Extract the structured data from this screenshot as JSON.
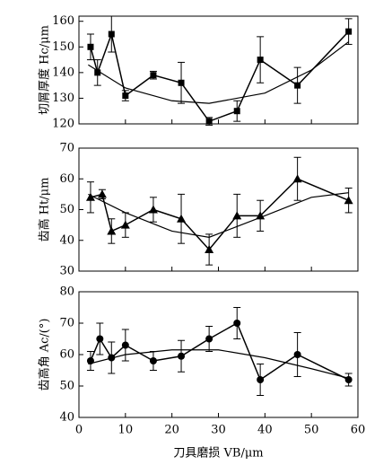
{
  "chart_data": [
    {
      "type": "line",
      "ylabel": "切屑厚度 Hc/μm",
      "marker": "square",
      "x": [
        2.5,
        4,
        7,
        10,
        16,
        22,
        28,
        34,
        39,
        47,
        58
      ],
      "values": [
        150,
        140,
        155,
        131,
        139,
        136,
        121,
        125,
        145,
        135,
        156
      ],
      "errors": [
        5,
        5,
        7,
        2,
        1.5,
        8,
        1.5,
        4,
        9,
        7,
        5
      ],
      "fit_x": [
        2,
        10,
        20,
        28,
        40,
        50,
        58
      ],
      "fit_values": [
        143,
        134,
        129,
        128,
        132,
        141,
        152
      ],
      "xlim": [
        0,
        60
      ],
      "xticks": [
        0,
        10,
        20,
        30,
        40,
        50,
        60
      ],
      "ylim": [
        120,
        162
      ],
      "yticks": [
        120,
        130,
        140,
        150,
        160
      ]
    },
    {
      "type": "line",
      "ylabel": "齿高 Ht/μm",
      "marker": "triangle",
      "x": [
        2.5,
        5,
        7,
        10,
        16,
        22,
        28,
        34,
        39,
        47,
        58
      ],
      "values": [
        54,
        55,
        43,
        45,
        50,
        47,
        37,
        48,
        48,
        60,
        53
      ],
      "errors": [
        5,
        1.5,
        4,
        4,
        4,
        8,
        5,
        7,
        5,
        7,
        4
      ],
      "fit_x": [
        2,
        10,
        20,
        28,
        40,
        50,
        58
      ],
      "fit_values": [
        55,
        49,
        43,
        41,
        48,
        54,
        55.5
      ],
      "xlim": [
        0,
        60
      ],
      "xticks": [
        0,
        10,
        20,
        30,
        40,
        50,
        60
      ],
      "ylim": [
        30,
        70
      ],
      "yticks": [
        30,
        40,
        50,
        60,
        70
      ]
    },
    {
      "type": "line",
      "ylabel": "齿高角 Ac/(°)",
      "xlabel": "刀具磨损 VB/μm",
      "marker": "circle",
      "x": [
        2.5,
        4.5,
        7,
        10,
        16,
        22,
        28,
        34,
        39,
        47,
        58
      ],
      "values": [
        58,
        65,
        59,
        63,
        58,
        59.5,
        65,
        70,
        52,
        60,
        52
      ],
      "errors": [
        3,
        5,
        5,
        5,
        3,
        5,
        4,
        5,
        5,
        7,
        2
      ],
      "fit_x": [
        2,
        10,
        20,
        30,
        40,
        50,
        58
      ],
      "fit_values": [
        57,
        60,
        61.5,
        61.5,
        59,
        55.5,
        52.5
      ],
      "xlim": [
        0,
        60
      ],
      "xticks": [
        0,
        10,
        20,
        30,
        40,
        50,
        60
      ],
      "ylim": [
        40,
        80
      ],
      "yticks": [
        40,
        50,
        60,
        70,
        80
      ]
    }
  ]
}
